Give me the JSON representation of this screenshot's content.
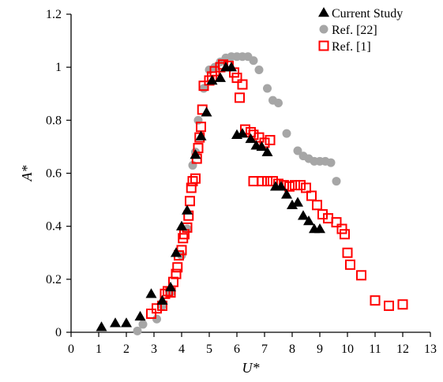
{
  "chart_data": {
    "type": "scatter",
    "xlabel": "U*",
    "ylabel": "A*",
    "xlim": [
      0,
      13
    ],
    "ylim": [
      0,
      1.2
    ],
    "xticks": [
      "0",
      "1",
      "2",
      "3",
      "4",
      "5",
      "6",
      "7",
      "8",
      "9",
      "10",
      "11",
      "12",
      "13"
    ],
    "yticks": [
      "0",
      "0.2",
      "0.4",
      "0.6",
      "0.8",
      "1",
      "1.2"
    ],
    "grid": false,
    "legend_position": "top-right",
    "series": [
      {
        "name": "Current Study",
        "marker": "triangle",
        "color": "#000000",
        "points": [
          [
            1.1,
            0.02
          ],
          [
            1.6,
            0.035
          ],
          [
            2.0,
            0.035
          ],
          [
            2.5,
            0.06
          ],
          [
            2.9,
            0.145
          ],
          [
            3.3,
            0.12
          ],
          [
            3.6,
            0.17
          ],
          [
            3.8,
            0.3
          ],
          [
            4.0,
            0.4
          ],
          [
            4.2,
            0.46
          ],
          [
            4.5,
            0.67
          ],
          [
            4.7,
            0.74
          ],
          [
            4.9,
            0.83
          ],
          [
            5.1,
            0.95
          ],
          [
            5.4,
            0.96
          ],
          [
            5.6,
            1.0
          ],
          [
            5.8,
            1.0
          ],
          [
            6.0,
            0.745
          ],
          [
            6.2,
            0.75
          ],
          [
            6.5,
            0.73
          ],
          [
            6.7,
            0.705
          ],
          [
            6.9,
            0.7
          ],
          [
            7.1,
            0.68
          ],
          [
            7.4,
            0.55
          ],
          [
            7.6,
            0.55
          ],
          [
            7.8,
            0.52
          ],
          [
            8.0,
            0.48
          ],
          [
            8.2,
            0.49
          ],
          [
            8.4,
            0.44
          ],
          [
            8.6,
            0.42
          ],
          [
            8.8,
            0.39
          ],
          [
            9.0,
            0.39
          ]
        ]
      },
      {
        "name": "Ref. [22]",
        "marker": "circle",
        "color": "#a6a6a6",
        "points": [
          [
            2.4,
            0.005
          ],
          [
            2.6,
            0.03
          ],
          [
            3.1,
            0.05
          ],
          [
            3.3,
            0.1
          ],
          [
            3.6,
            0.15
          ],
          [
            4.0,
            0.29
          ],
          [
            4.2,
            0.39
          ],
          [
            4.4,
            0.63
          ],
          [
            4.5,
            0.68
          ],
          [
            4.6,
            0.8
          ],
          [
            4.8,
            0.92
          ],
          [
            5.0,
            0.99
          ],
          [
            5.2,
            1.0
          ],
          [
            5.4,
            1.02
          ],
          [
            5.6,
            1.035
          ],
          [
            5.8,
            1.04
          ],
          [
            6.0,
            1.04
          ],
          [
            6.2,
            1.04
          ],
          [
            6.4,
            1.04
          ],
          [
            6.6,
            1.025
          ],
          [
            6.8,
            0.99
          ],
          [
            7.1,
            0.92
          ],
          [
            7.3,
            0.875
          ],
          [
            7.5,
            0.865
          ],
          [
            7.8,
            0.75
          ],
          [
            8.2,
            0.685
          ],
          [
            8.4,
            0.665
          ],
          [
            8.6,
            0.655
          ],
          [
            8.8,
            0.645
          ],
          [
            9.0,
            0.645
          ],
          [
            9.2,
            0.645
          ],
          [
            9.4,
            0.64
          ],
          [
            9.6,
            0.57
          ]
        ]
      },
      {
        "name": "Ref. [1]",
        "marker": "square",
        "color": "#ff0000",
        "points": [
          [
            2.9,
            0.07
          ],
          [
            3.1,
            0.09
          ],
          [
            3.3,
            0.1
          ],
          [
            3.4,
            0.145
          ],
          [
            3.5,
            0.155
          ],
          [
            3.6,
            0.15
          ],
          [
            3.7,
            0.19
          ],
          [
            3.8,
            0.22
          ],
          [
            3.85,
            0.245
          ],
          [
            3.9,
            0.29
          ],
          [
            4.0,
            0.31
          ],
          [
            4.05,
            0.355
          ],
          [
            4.1,
            0.37
          ],
          [
            4.2,
            0.395
          ],
          [
            4.25,
            0.44
          ],
          [
            4.3,
            0.495
          ],
          [
            4.35,
            0.545
          ],
          [
            4.4,
            0.57
          ],
          [
            4.5,
            0.58
          ],
          [
            4.55,
            0.655
          ],
          [
            4.6,
            0.695
          ],
          [
            4.65,
            0.735
          ],
          [
            4.7,
            0.775
          ],
          [
            4.75,
            0.84
          ],
          [
            4.8,
            0.93
          ],
          [
            5.0,
            0.95
          ],
          [
            5.1,
            0.965
          ],
          [
            5.2,
            0.985
          ],
          [
            5.4,
            1.0
          ],
          [
            5.5,
            1.01
          ],
          [
            5.7,
            1.005
          ],
          [
            5.9,
            0.98
          ],
          [
            6.0,
            0.96
          ],
          [
            6.1,
            0.885
          ],
          [
            6.2,
            0.935
          ],
          [
            6.3,
            0.765
          ],
          [
            6.5,
            0.755
          ],
          [
            6.6,
            0.745
          ],
          [
            6.8,
            0.735
          ],
          [
            7.0,
            0.715
          ],
          [
            7.2,
            0.725
          ],
          [
            6.6,
            0.57
          ],
          [
            6.9,
            0.57
          ],
          [
            7.1,
            0.57
          ],
          [
            7.3,
            0.57
          ],
          [
            7.5,
            0.56
          ],
          [
            7.7,
            0.555
          ],
          [
            7.9,
            0.55
          ],
          [
            8.1,
            0.555
          ],
          [
            8.3,
            0.555
          ],
          [
            8.5,
            0.545
          ],
          [
            8.7,
            0.515
          ],
          [
            8.9,
            0.48
          ],
          [
            9.1,
            0.445
          ],
          [
            9.3,
            0.43
          ],
          [
            9.6,
            0.415
          ],
          [
            9.8,
            0.39
          ],
          [
            9.9,
            0.37
          ],
          [
            10.0,
            0.3
          ],
          [
            10.1,
            0.255
          ],
          [
            10.5,
            0.215
          ],
          [
            11.0,
            0.12
          ],
          [
            11.5,
            0.1
          ],
          [
            12.0,
            0.105
          ]
        ]
      }
    ]
  }
}
